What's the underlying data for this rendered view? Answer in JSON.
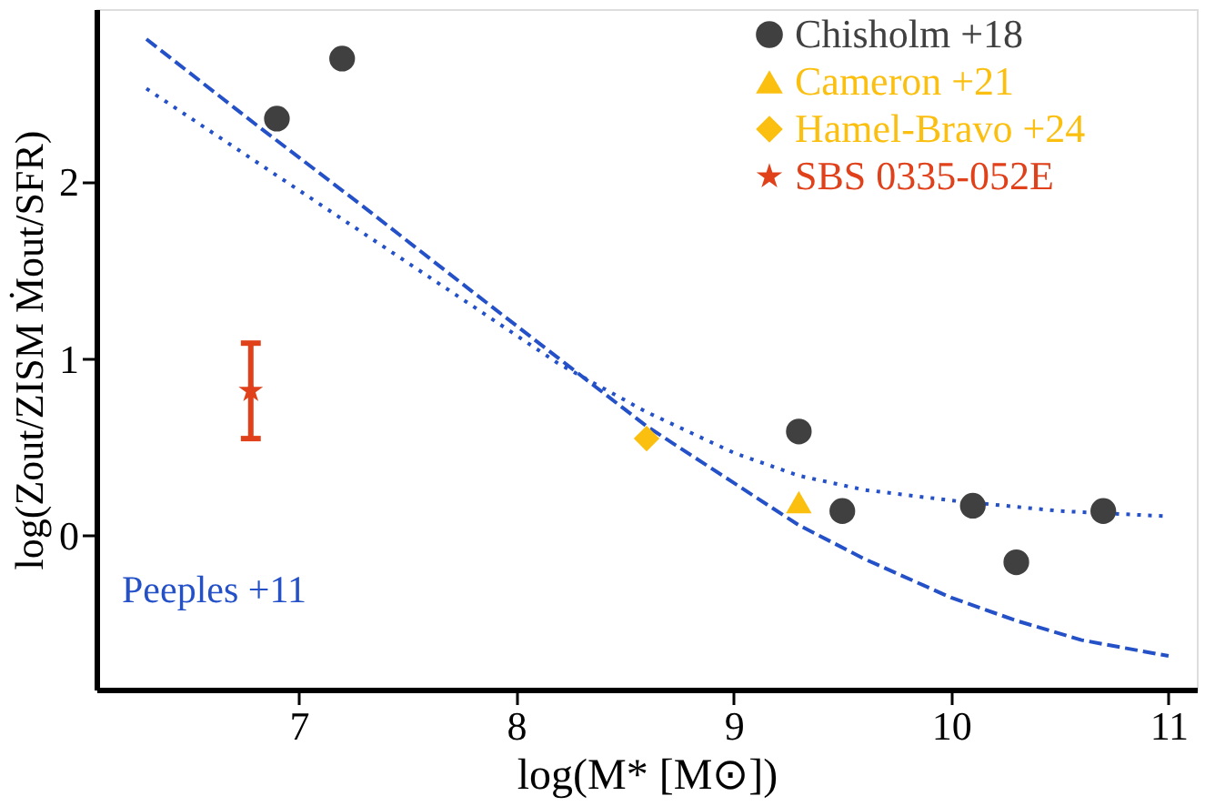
{
  "chart_data": {
    "type": "scatter",
    "xlabel": "log(M* [M⊙])",
    "ylabel": "log(Zout/ZISM Ṁout/SFR)",
    "xlim": [
      6.07,
      11.13
    ],
    "xticks": [
      7,
      8,
      9,
      10,
      11
    ],
    "ylim": [
      -0.87,
      2.98
    ],
    "yticks": [
      0,
      1,
      2
    ],
    "grid": false,
    "legend": "top right",
    "annotations": [
      "Peeples +11"
    ],
    "series": [
      {
        "type": "line",
        "line_style": "dashed",
        "marker": "none",
        "color": "#2450c8",
        "x": [
          6.3,
          6.8,
          7.3,
          7.8,
          8.2,
          8.6,
          9.0,
          9.3,
          9.6,
          10.0,
          10.3,
          10.6,
          11.0
        ],
        "values": [
          2.81,
          2.33,
          1.86,
          1.38,
          1.0,
          0.62,
          0.3,
          0.06,
          -0.13,
          -0.35,
          -0.48,
          -0.59,
          -0.68
        ]
      },
      {
        "type": "line",
        "line_style": "dotted",
        "marker": "none",
        "color": "#2450c8",
        "x": [
          6.3,
          6.8,
          7.3,
          7.8,
          8.2,
          8.6,
          9.0,
          9.3,
          9.6,
          10.0,
          10.5,
          11.0
        ],
        "values": [
          2.53,
          2.12,
          1.71,
          1.3,
          0.97,
          0.7,
          0.47,
          0.34,
          0.26,
          0.2,
          0.14,
          0.11
        ]
      },
      {
        "name": "Chisholm +18",
        "type": "scatter",
        "marker": "circle",
        "color": "#404040",
        "x": [
          6.9,
          7.2,
          9.3,
          9.5,
          10.1,
          10.3,
          10.7
        ],
        "values": [
          2.36,
          2.7,
          0.59,
          0.14,
          0.17,
          -0.15,
          0.14
        ]
      },
      {
        "name": "Cameron +21",
        "type": "scatter",
        "marker": "triangle",
        "color": "#fbbf10",
        "x": [
          9.3
        ],
        "values": [
          0.19
        ]
      },
      {
        "name": "Hamel-Bravo +24",
        "type": "scatter",
        "marker": "diamond",
        "color": "#fbbf10",
        "x": [
          8.6
        ],
        "values": [
          0.55
        ]
      },
      {
        "name": "SBS 0335-052E",
        "type": "scatter",
        "marker": "star",
        "color": "#e0401a",
        "x": [
          6.78
        ],
        "values": [
          0.82
        ],
        "errors": [
          0.27
        ]
      }
    ]
  }
}
